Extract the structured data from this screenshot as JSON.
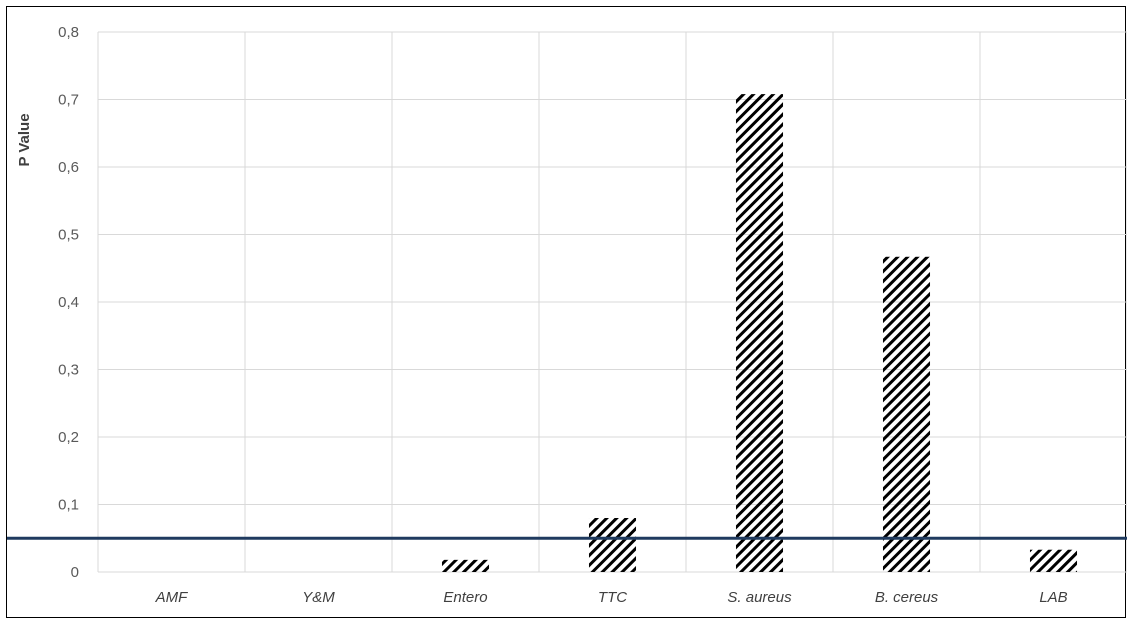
{
  "chart_data": {
    "type": "bar",
    "title": "",
    "xlabel": "",
    "ylabel": "P Value",
    "categories": [
      "AMF",
      "Y&M",
      "Entero",
      "TTC",
      "S. aureus",
      "B. cereus",
      "LAB"
    ],
    "values": [
      0,
      0,
      0.018,
      0.08,
      0.708,
      0.467,
      0.033
    ],
    "ylim": [
      0,
      0.8
    ],
    "yticks": [
      "0",
      "0,1",
      "0,2",
      "0,3",
      "0,4",
      "0,5",
      "0,6",
      "0,7",
      "0,8"
    ],
    "reference_line": 0.05,
    "grid": true,
    "bar_pattern": "diagonal-hatch",
    "colors": {
      "hatch": "#000000",
      "reference_line": "#1f3a5f",
      "grid": "#d9d9d9"
    }
  }
}
